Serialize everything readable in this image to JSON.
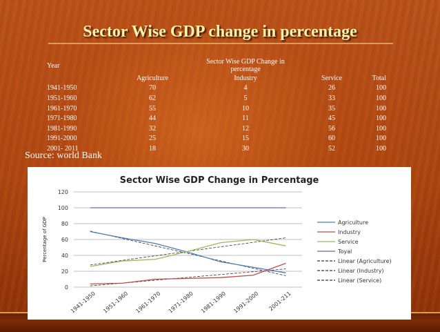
{
  "slide": {
    "title": "Sector Wise GDP change in percentage",
    "source": "Source: world Bank"
  },
  "table": {
    "year_header": "Year",
    "group_header": "Sector Wise GDP Change in percentage",
    "columns": [
      "Agriculture",
      "Industry",
      "Service",
      "Total"
    ],
    "rows": [
      [
        "1941-1950",
        "70",
        "4",
        "26",
        "100"
      ],
      [
        "1951-1960",
        "62",
        "5",
        "33",
        "100"
      ],
      [
        "1961-1970",
        "55",
        "10",
        "35",
        "100"
      ],
      [
        "1971-1980",
        "44",
        "11",
        "45",
        "100"
      ],
      [
        "1981-1990",
        "32",
        "12",
        "56",
        "100"
      ],
      [
        "1991-2000",
        "25",
        "15",
        "60",
        "100"
      ],
      [
        "2001- 2011",
        "18",
        "30",
        "52",
        "100"
      ]
    ]
  },
  "chart_data": {
    "type": "line",
    "title": "Sector Wise GDP Change in Percentage",
    "xlabel": "",
    "ylabel": "Percentage of GDP",
    "categories": [
      "1941-1950",
      "1951-1960",
      "1961-1970",
      "1971-1980",
      "1981-1990",
      "1991-2000",
      "2001-211"
    ],
    "ylim": [
      0,
      120
    ],
    "yticks": [
      0,
      20,
      40,
      60,
      80,
      100,
      120
    ],
    "grid": true,
    "legend": "right",
    "series": [
      {
        "name": "Agriculture",
        "values": [
          70,
          62,
          55,
          44,
          32,
          25,
          18
        ],
        "color": "#4a7ebb"
      },
      {
        "name": "Industry",
        "values": [
          4,
          5,
          10,
          11,
          12,
          15,
          30
        ],
        "color": "#be4b48"
      },
      {
        "name": "Service",
        "values": [
          26,
          33,
          35,
          45,
          56,
          60,
          52
        ],
        "color": "#98b954"
      },
      {
        "name": "Toyal",
        "values": [
          100,
          100,
          100,
          100,
          100,
          100,
          100
        ],
        "color": "#7d60a0"
      }
    ],
    "trendlines": [
      {
        "name": "Linear (Agriculture)",
        "values": [
          70.6,
          61.2,
          51.9,
          42.5,
          33.1,
          23.8,
          14.4
        ]
      },
      {
        "name": "Linear (Industry)",
        "values": [
          1.6,
          5.1,
          8.7,
          12.3,
          15.9,
          19.4,
          23.0
        ]
      },
      {
        "name": "Linear (Service)",
        "values": [
          27.8,
          33.8,
          39.5,
          45.1,
          50.8,
          56.4,
          62.1
        ]
      }
    ]
  }
}
